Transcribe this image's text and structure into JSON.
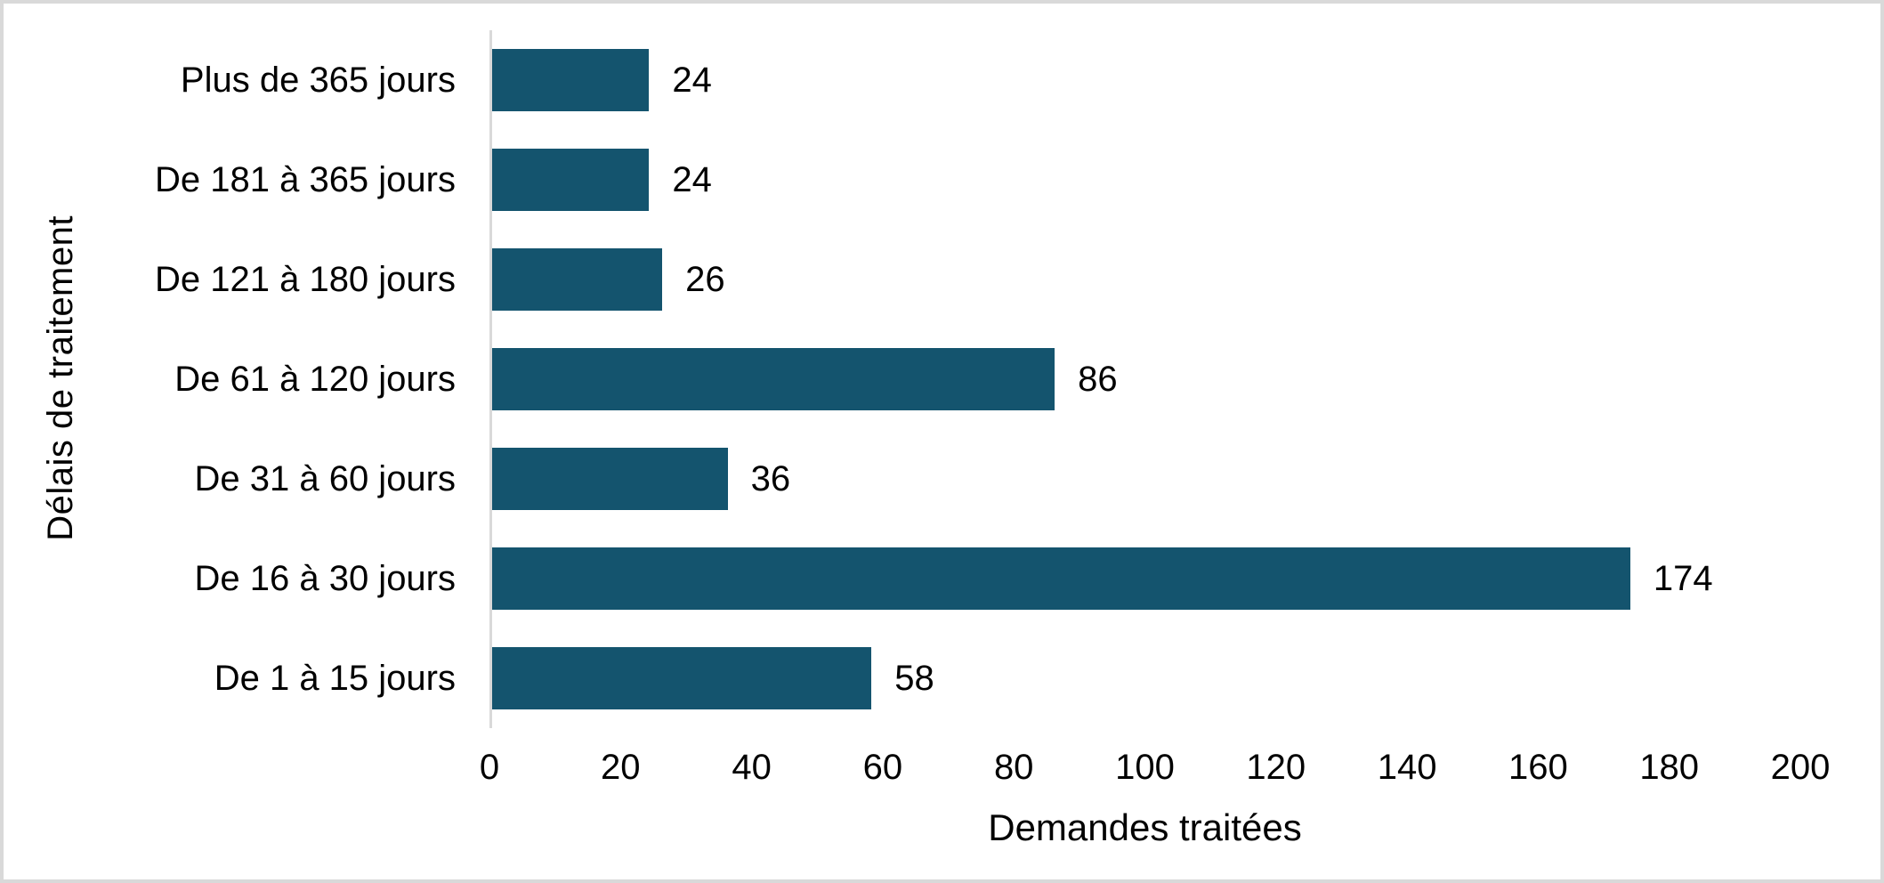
{
  "chart_data": {
    "type": "bar",
    "orientation": "horizontal",
    "title": "",
    "categories": [
      "Plus de 365 jours",
      "De 181 à 365 jours",
      "De 121 à 180 jours",
      "De 61 à 120 jours",
      "De 31 à 60 jours",
      "De 16 à 30 jours",
      "De 1 à 15 jours"
    ],
    "values": [
      24,
      24,
      26,
      86,
      36,
      174,
      58
    ],
    "xlabel": "Demandes traitées",
    "ylabel": "Délais de traitement",
    "xlim": [
      0,
      200
    ],
    "xticks": [
      0,
      20,
      40,
      60,
      80,
      100,
      120,
      140,
      160,
      180,
      200
    ],
    "grid": false,
    "legend": false,
    "data_labels": true,
    "colors": {
      "bar": "#14546E",
      "axis_line": "#d9d9d9",
      "frame_border": "#d9d9d9",
      "text": "#000000",
      "background": "#ffffff"
    }
  }
}
